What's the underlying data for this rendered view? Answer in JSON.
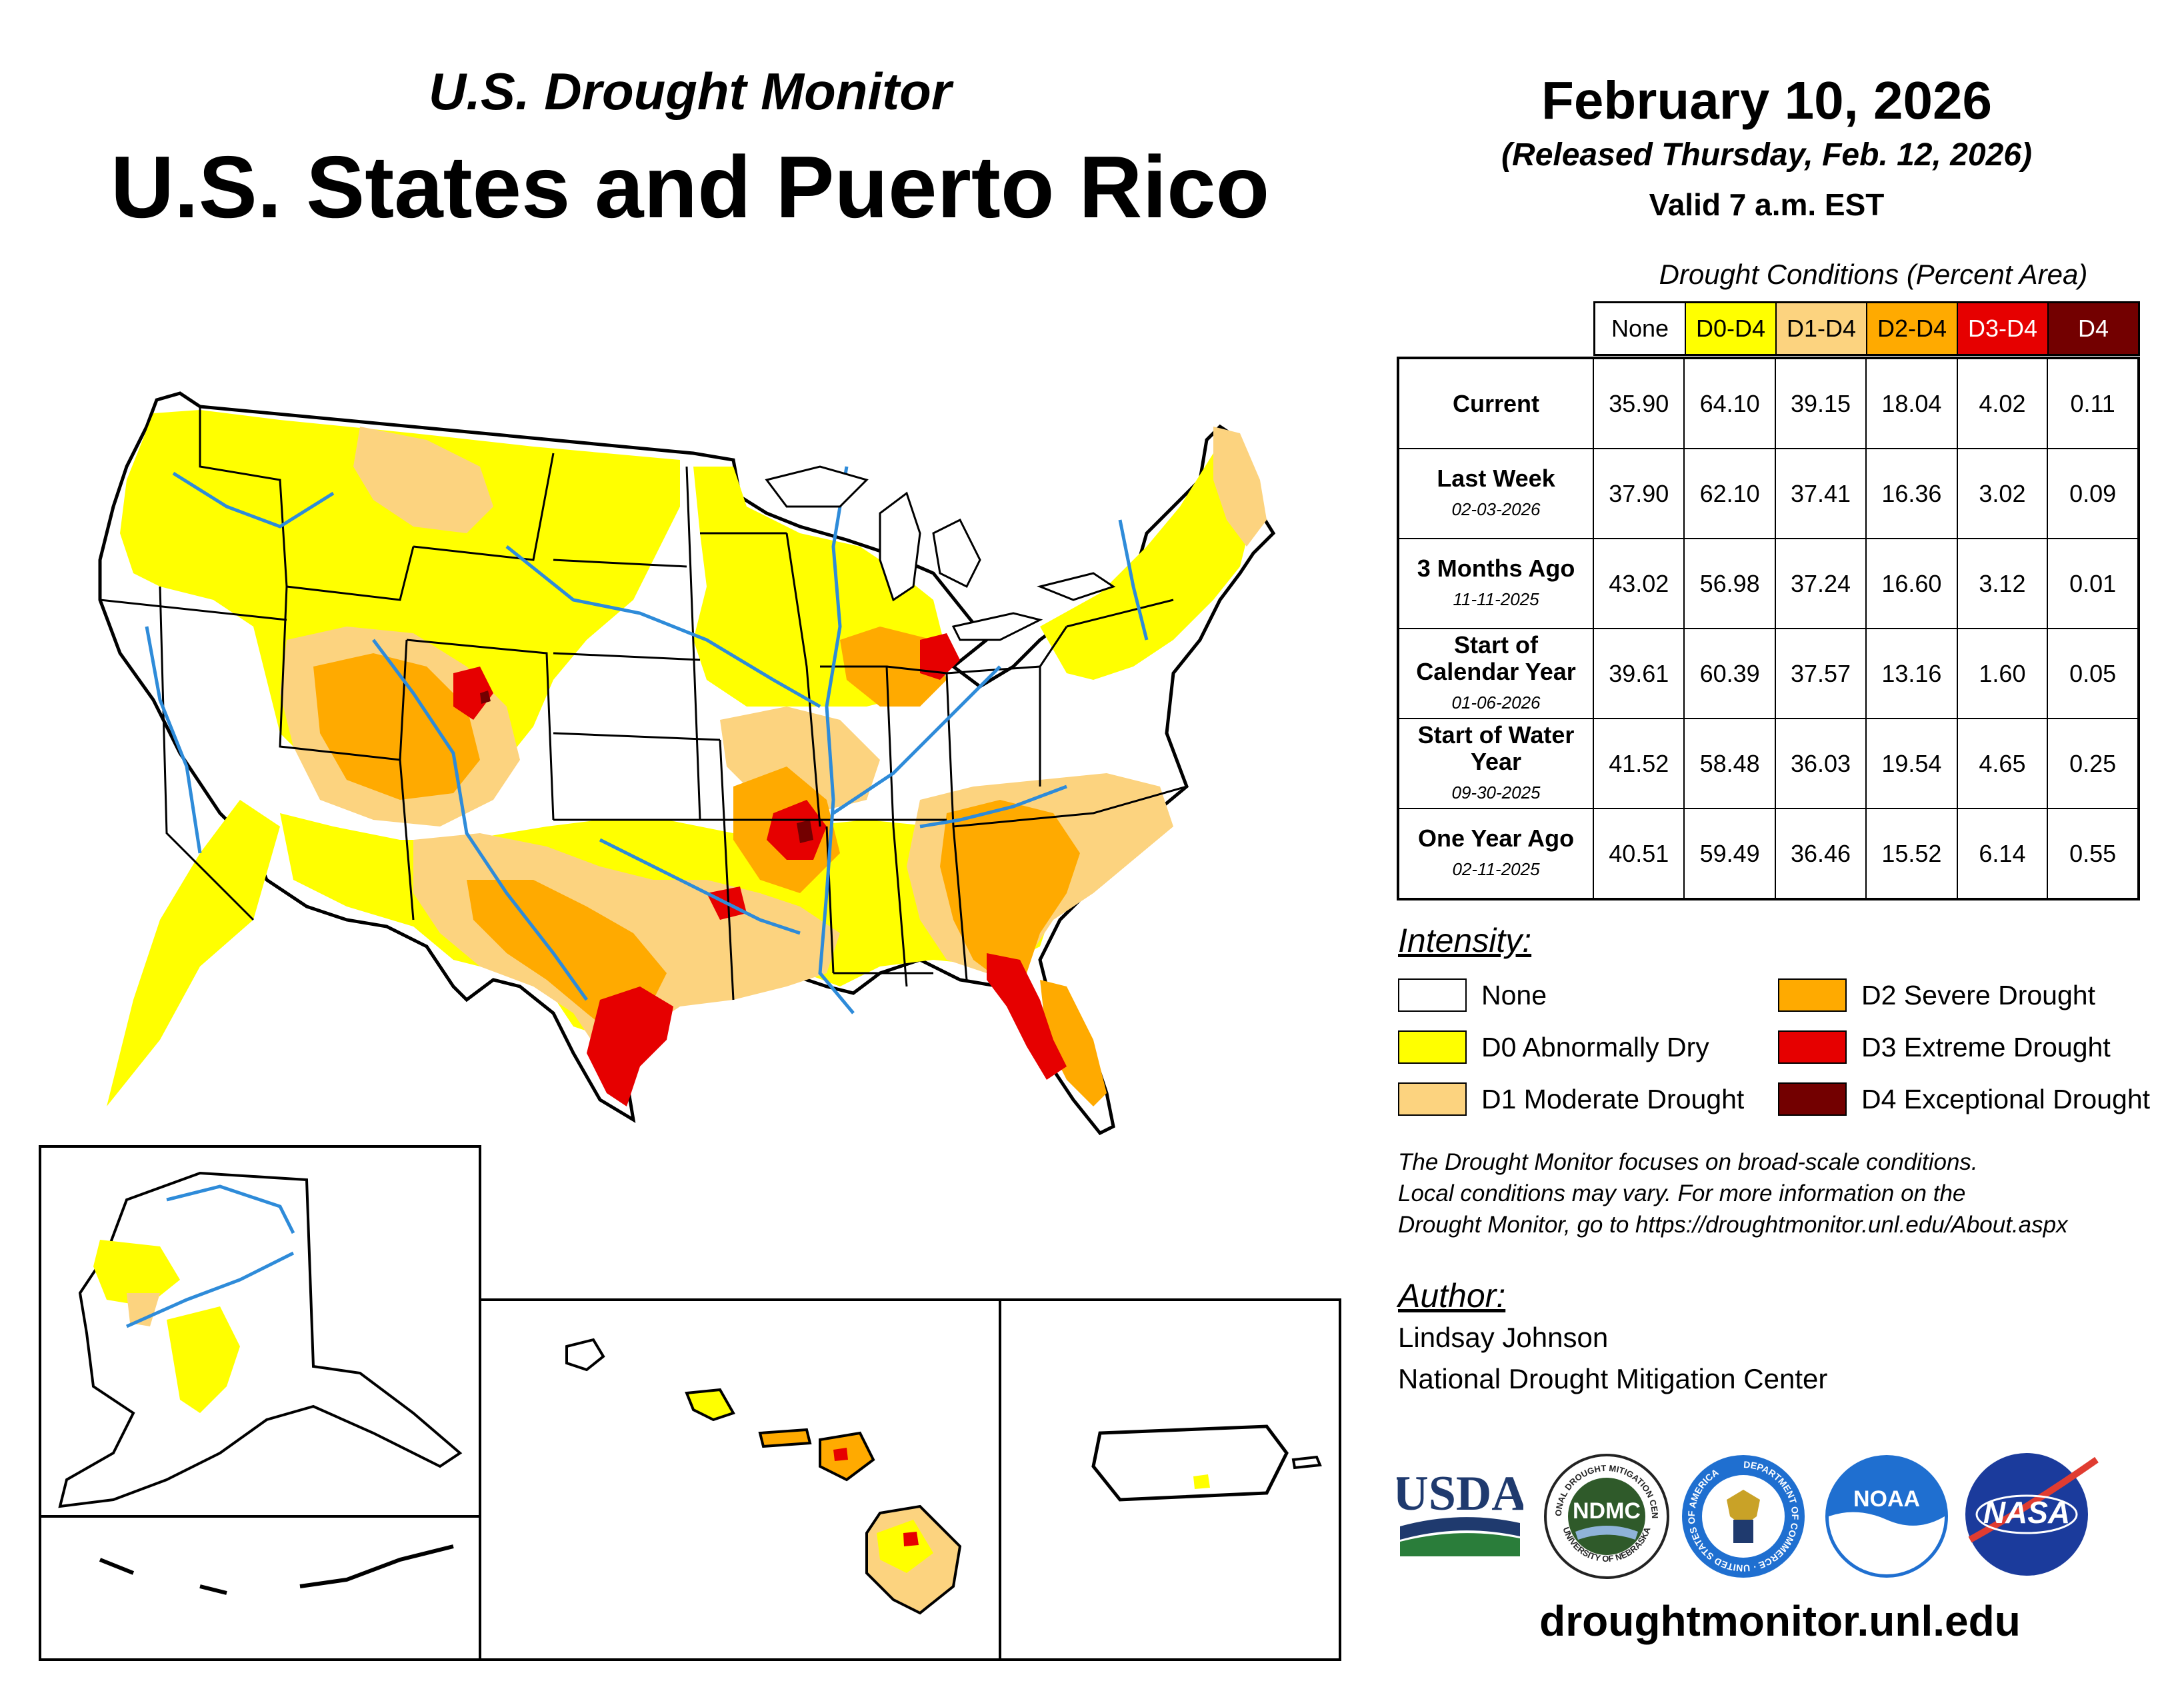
{
  "header": {
    "subtitle": "U.S. Drought Monitor",
    "title": "U.S. States and Puerto Rico",
    "date": "February 10, 2026",
    "released": "(Released Thursday, Feb. 12, 2026)",
    "valid": "Valid 7 a.m. EST"
  },
  "table": {
    "caption": "Drought Conditions (Percent Area)",
    "columns": [
      {
        "label": "None",
        "color": "#ffffff",
        "text_color": "#000000"
      },
      {
        "label": "D0-D4",
        "color": "#ffff00",
        "text_color": "#000000"
      },
      {
        "label": "D1-D4",
        "color": "#fcd37f",
        "text_color": "#000000"
      },
      {
        "label": "D2-D4",
        "color": "#ffaa00",
        "text_color": "#000000"
      },
      {
        "label": "D3-D4",
        "color": "#e60000",
        "text_color": "#ffffff"
      },
      {
        "label": "D4",
        "color": "#730000",
        "text_color": "#ffffff"
      }
    ],
    "rows": [
      {
        "label": "Current",
        "date": "",
        "values": [
          "35.90",
          "64.10",
          "39.15",
          "18.04",
          "4.02",
          "0.11"
        ]
      },
      {
        "label": "Last Week",
        "date": "02-03-2026",
        "values": [
          "37.90",
          "62.10",
          "37.41",
          "16.36",
          "3.02",
          "0.09"
        ]
      },
      {
        "label": "3 Months Ago",
        "date": "11-11-2025",
        "values": [
          "43.02",
          "56.98",
          "37.24",
          "16.60",
          "3.12",
          "0.01"
        ]
      },
      {
        "label": "Start of Calendar Year",
        "date": "01-06-2026",
        "values": [
          "39.61",
          "60.39",
          "37.57",
          "13.16",
          "1.60",
          "0.05"
        ]
      },
      {
        "label": "Start of Water Year",
        "date": "09-30-2025",
        "values": [
          "41.52",
          "58.48",
          "36.03",
          "19.54",
          "4.65",
          "0.25"
        ]
      },
      {
        "label": "One Year Ago",
        "date": "02-11-2025",
        "values": [
          "40.51",
          "59.49",
          "36.46",
          "15.52",
          "6.14",
          "0.55"
        ]
      }
    ]
  },
  "legend": {
    "heading": "Intensity:",
    "items": [
      {
        "label": "None",
        "color": "#ffffff"
      },
      {
        "label": "D0 Abnormally Dry",
        "color": "#ffff00"
      },
      {
        "label": "D1 Moderate Drought",
        "color": "#fcd37f"
      },
      {
        "label": "D2 Severe Drought",
        "color": "#ffaa00"
      },
      {
        "label": "D3 Extreme Drought",
        "color": "#e60000"
      },
      {
        "label": "D4 Exceptional Drought",
        "color": "#730000"
      }
    ]
  },
  "note": {
    "line1": "The Drought Monitor focuses on broad-scale conditions.",
    "line2": "Local conditions may vary. For more information on the",
    "line3": "Drought Monitor, go to https://droughtmonitor.unl.edu/About.aspx"
  },
  "author": {
    "heading": "Author:",
    "name": "Lindsay Johnson",
    "org": "National Drought Mitigation Center"
  },
  "logos": {
    "usda": "USDA",
    "ndmc": "NDMC",
    "ndmc_ring_top": "NATIONAL DROUGHT MITIGATION CENTER",
    "ndmc_ring_bottom": "UNIVERSITY OF NEBRASKA",
    "commerce_ring": "DEPARTMENT OF COMMERCE · UNITED STATES OF AMERICA",
    "noaa": "NOAA",
    "nasa": "NASA"
  },
  "site": "droughtmonitor.unl.edu",
  "colors": {
    "d0": "#ffff00",
    "d1": "#fcd37f",
    "d2": "#ffaa00",
    "d3": "#e60000",
    "d4": "#730000",
    "river": "#2e8bd9",
    "usda_blue": "#1f3a6e",
    "usda_green": "#2a7d3a",
    "ndmc_green": "#2f5a2a",
    "noaa_blue": "#1f6fd0",
    "nasa_blue": "#1b3b9c"
  }
}
